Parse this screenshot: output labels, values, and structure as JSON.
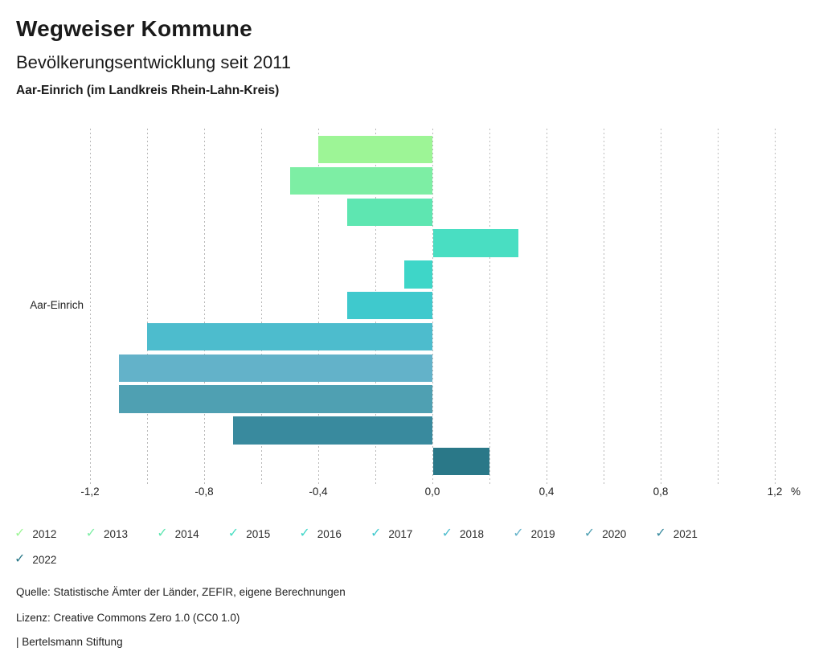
{
  "header": {
    "title": "Wegweiser Kommune",
    "subtitle": "Bevölkerungsentwicklung seit 2011",
    "region": "Aar-Einrich (im Landkreis Rhein-Lahn-Kreis)"
  },
  "chart_data": {
    "type": "bar",
    "orientation": "horizontal",
    "title": "Bevölkerungsentwicklung seit 2011",
    "category_label": "Aar-Einrich",
    "unit": "%",
    "series": [
      {
        "name": "2012",
        "value": -0.4,
        "color": "#9df596"
      },
      {
        "name": "2013",
        "value": -0.5,
        "color": "#7deea4"
      },
      {
        "name": "2014",
        "value": -0.3,
        "color": "#5ee6b1"
      },
      {
        "name": "2015",
        "value": 0.3,
        "color": "#49dec2"
      },
      {
        "name": "2016",
        "value": -0.1,
        "color": "#3ed6c8"
      },
      {
        "name": "2017",
        "value": -0.3,
        "color": "#3fc9cd"
      },
      {
        "name": "2018",
        "value": -1.0,
        "color": "#4dbccd"
      },
      {
        "name": "2019",
        "value": -1.1,
        "color": "#63b2c9"
      },
      {
        "name": "2020",
        "value": -1.1,
        "color": "#4fa0b2"
      },
      {
        "name": "2021",
        "value": -0.7,
        "color": "#398a9e"
      },
      {
        "name": "2022",
        "value": 0.2,
        "color": "#2a7888"
      }
    ],
    "xlim": [
      -1.2,
      1.2
    ],
    "gridline_step": 0.2,
    "x_ticks": [
      -1.2,
      -0.8,
      -0.4,
      0.0,
      0.4,
      0.8,
      1.2
    ],
    "x_tick_labels": [
      "-1,2",
      "-0,8",
      "-0,4",
      "0,0",
      "0,4",
      "0,8",
      "1,2"
    ],
    "grid": true,
    "legend_position": "bottom",
    "legend_check_icon": "✓"
  },
  "legend": {
    "items_per_row": 10
  },
  "footer": {
    "source": "Quelle: Statistische Ämter der Länder, ZEFIR, eigene Berechnungen",
    "license": "Lizenz: Creative Commons Zero 1.0 (CC0 1.0)",
    "attribution": "| Bertelsmann Stiftung"
  }
}
